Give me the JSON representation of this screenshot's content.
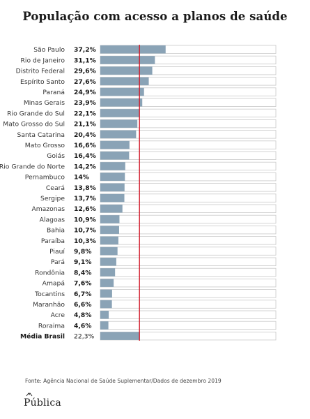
{
  "title": "População com acesso a planos de saúde",
  "source": "Fonte: Agência Nacional de Saúde Suplementar/Dados de dezembro 2019",
  "brand": "Pública",
  "colors": {
    "bar": "#8aa3b6",
    "track_border": "#c9c9c9",
    "reference_line": "#d11a2a"
  },
  "chart_data": {
    "type": "bar",
    "orientation": "horizontal",
    "title": "População com acesso a planos de saúde",
    "unit": "%",
    "xlim": [
      0,
      100
    ],
    "reference": {
      "label": "Média Brasil",
      "value": 22.3
    },
    "categories": [
      "São Paulo",
      "Rio de Janeiro",
      "Distrito Federal",
      "Espírito Santo",
      "Paraná",
      "Minas Gerais",
      "Rio Grande do Sul",
      "Mato Grosso do Sul",
      "Santa Catarina",
      "Mato Grosso",
      "Goiás",
      "Rio Grande do Norte",
      "Pernambuco",
      "Ceará",
      "Sergipe",
      "Amazonas",
      "Alagoas",
      "Bahia",
      "Paraíba",
      "Piauí",
      "Pará",
      "Rondônia",
      "Amapá",
      "Tocantins",
      "Maranhão",
      "Acre",
      "Roraima",
      "Média Brasil"
    ],
    "values": [
      37.2,
      31.1,
      29.6,
      27.6,
      24.9,
      23.9,
      22.1,
      21.1,
      20.4,
      16.6,
      16.4,
      14.2,
      14,
      13.8,
      13.7,
      12.6,
      10.9,
      10.7,
      10.3,
      9.8,
      9.1,
      8.4,
      7.6,
      6.7,
      6.6,
      4.8,
      4.6,
      22.3
    ],
    "value_labels": [
      "37,2%",
      "31,1%",
      "29,6%",
      "27,6%",
      "24,9%",
      "23,9%",
      "22,1%",
      "21,1%",
      "20,4%",
      "16,6%",
      "16,4%",
      "14,2%",
      "14%",
      "13,8%",
      "13,7%",
      "12,6%",
      "10,9%",
      "10,7%",
      "10,3%",
      "9,8%",
      "9,1%",
      "8,4%",
      "7,6%",
      "6,7%",
      "6,6%",
      "4,8%",
      "4,6%",
      "22,3%"
    ]
  }
}
